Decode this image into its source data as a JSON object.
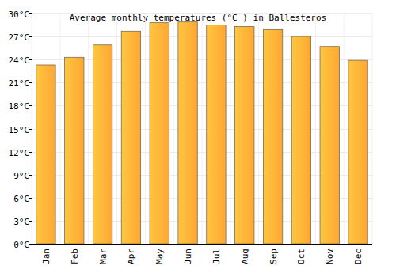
{
  "chart_data": {
    "type": "bar",
    "title": "Average monthly temperatures (°C ) in Ballesteros",
    "categories": [
      "Jan",
      "Feb",
      "Mar",
      "Apr",
      "May",
      "Jun",
      "Jul",
      "Aug",
      "Sep",
      "Oct",
      "Nov",
      "Dec"
    ],
    "values": [
      23.3,
      24.3,
      25.9,
      27.7,
      28.8,
      28.9,
      28.5,
      28.3,
      27.9,
      27.0,
      25.7,
      23.9
    ],
    "color": "#ffa733",
    "ylim": [
      0,
      30
    ],
    "yticks": [
      {
        "value": 0,
        "label": "0°C"
      },
      {
        "value": 3,
        "label": "3°C"
      },
      {
        "value": 6,
        "label": "6°C"
      },
      {
        "value": 9,
        "label": "9°C"
      },
      {
        "value": 12,
        "label": "12°C"
      },
      {
        "value": 15,
        "label": "15°C"
      },
      {
        "value": 18,
        "label": "18°C"
      },
      {
        "value": 21,
        "label": "21°C"
      },
      {
        "value": 24,
        "label": "24°C"
      },
      {
        "value": 27,
        "label": "27°C"
      },
      {
        "value": 30,
        "label": "30°C"
      }
    ],
    "grid": true
  }
}
